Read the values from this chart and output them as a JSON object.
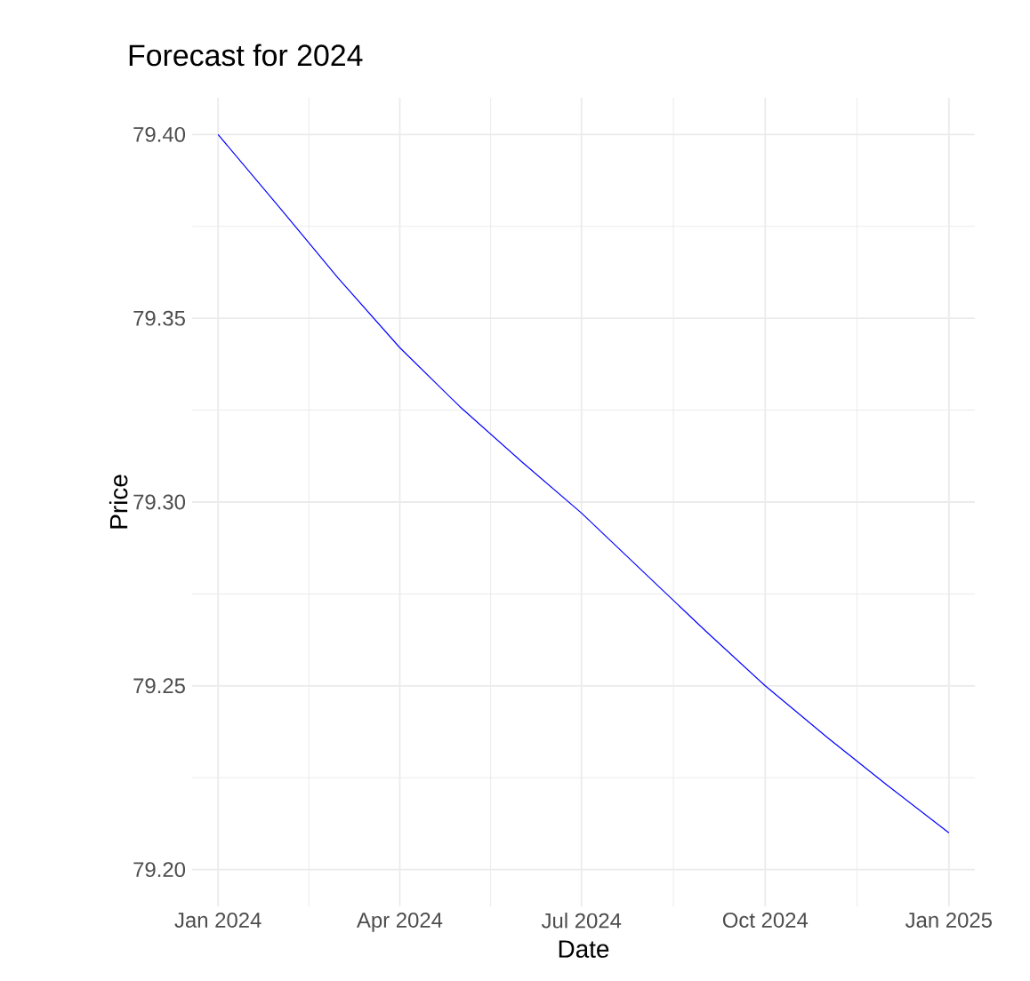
{
  "chart_data": {
    "type": "line",
    "title": "Forecast for 2024",
    "xlabel": "Date",
    "ylabel": "Price",
    "x": [
      "2024-01",
      "2024-02",
      "2024-03",
      "2024-04",
      "2024-05",
      "2024-06",
      "2024-07",
      "2024-08",
      "2024-09",
      "2024-10",
      "2024-11",
      "2024-12",
      "2025-01"
    ],
    "series": [
      {
        "color": "#0000ff",
        "values": [
          79.4,
          79.38,
          79.361,
          79.342,
          79.326,
          79.311,
          79.297,
          79.281,
          79.265,
          79.25,
          79.236,
          79.223,
          79.21
        ]
      }
    ],
    "xlim": [
      "2023-12-19",
      "2025-01-14"
    ],
    "xticks": [
      {
        "value": "2024-01",
        "label": "Jan 2024"
      },
      {
        "value": "2024-04",
        "label": "Apr 2024"
      },
      {
        "value": "2024-07",
        "label": "Jul 2024"
      },
      {
        "value": "2024-10",
        "label": "Oct 2024"
      },
      {
        "value": "2025-01",
        "label": "Jan 2025"
      }
    ],
    "ylim": [
      79.19,
      79.41
    ],
    "yticks": [
      {
        "value": 79.2,
        "label": "79.20"
      },
      {
        "value": 79.25,
        "label": "79.25"
      },
      {
        "value": 79.3,
        "label": "79.30"
      },
      {
        "value": 79.35,
        "label": "79.35"
      },
      {
        "value": 79.4,
        "label": "79.40"
      }
    ],
    "grid": true,
    "marker": "none",
    "line_style": "solid"
  }
}
